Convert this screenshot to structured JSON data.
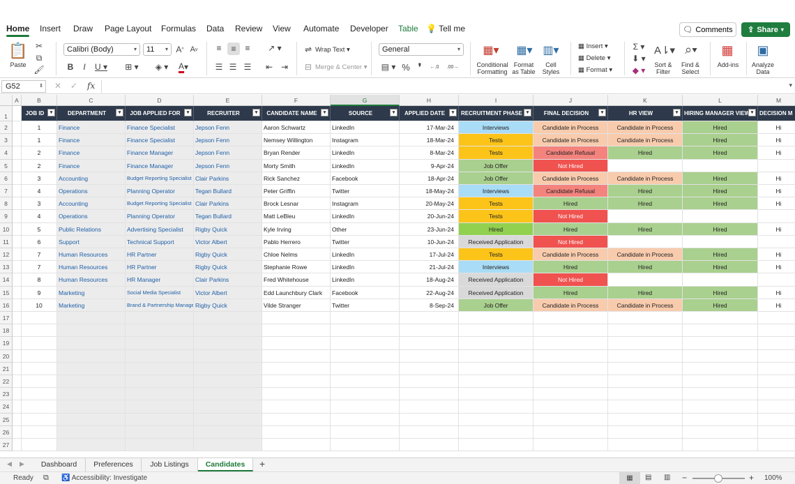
{
  "ribbon_tabs": [
    "Home",
    "Insert",
    "Draw",
    "Page Layout",
    "Formulas",
    "Data",
    "Review",
    "View",
    "Automate",
    "Developer",
    "Table"
  ],
  "tell_me": "Tell me",
  "comments_label": "Comments",
  "share_label": "Share",
  "clipboard": {
    "paste": "Paste"
  },
  "font": {
    "name": "Calibri (Body)",
    "size": "11"
  },
  "alignment": {
    "wrap": "Wrap Text",
    "merge": "Merge & Center"
  },
  "number_format": "General",
  "styles": {
    "conditional": "Conditional\nFormatting",
    "format_table": "Format\nas Table",
    "cell_styles": "Cell\nStyles"
  },
  "cells_group": {
    "insert": "Insert",
    "delete": "Delete",
    "format": "Format"
  },
  "editing": {
    "sort": "Sort &\nFilter",
    "find": "Find &\nSelect"
  },
  "addins": "Add-ins",
  "analyze": "Analyze\nData",
  "formula_bar": {
    "name_box": "G52",
    "fx": "fx",
    "value": ""
  },
  "columns": [
    {
      "letter": "A"
    },
    {
      "letter": "B"
    },
    {
      "letter": "C"
    },
    {
      "letter": "D"
    },
    {
      "letter": "E"
    },
    {
      "letter": "F"
    },
    {
      "letter": "G"
    },
    {
      "letter": "H"
    },
    {
      "letter": "I"
    },
    {
      "letter": "J"
    },
    {
      "letter": "K"
    },
    {
      "letter": "L"
    },
    {
      "letter": "M"
    }
  ],
  "table_headers": [
    "JOB ID",
    "DEPARTMENT",
    "JOB APPLIED FOR",
    "RECRUITER",
    "CANDIDATE NAME",
    "SOURCE",
    "APPLIED DATE",
    "RECRUITMENT PHASE",
    "FINAL DECISION",
    "HR VIEW",
    "HIRING MANAGER VIEW",
    "DECISION M"
  ],
  "rows": [
    [
      "1",
      "Finance",
      "Finance Specialist",
      "Jepson Fenn",
      "Aaron Schwartz",
      "LinkedIn",
      "17-Mar-24",
      "Interviews",
      "Candidate in Process",
      "Candidate in Process",
      "Hired",
      "Hi"
    ],
    [
      "1",
      "Finance",
      "Finance Specialist",
      "Jepson Fenn",
      "Nemsey Willington",
      "Instagram",
      "18-Mar-24",
      "Tests",
      "Candidate in Process",
      "Candidate in Process",
      "Hired",
      "Hi"
    ],
    [
      "2",
      "Finance",
      "Finance Manager",
      "Jepson Fenn",
      "Bryan Render",
      "LinkedIn",
      "8-Mar-24",
      "Tests",
      "Candidate Refusal",
      "Hired",
      "Hired",
      "Hi"
    ],
    [
      "2",
      "Finance",
      "Finance Manager",
      "Jepson Fenn",
      "Morty Smith",
      "LinkedIn",
      "9-Apr-24",
      "Job Offer",
      "Not Hired",
      "",
      "",
      ""
    ],
    [
      "3",
      "Accounting",
      "Budget Reporting Specialist",
      "Clair Parkins",
      "Rick Sanchez",
      "Facebook",
      "18-Apr-24",
      "Job Offer",
      "Candidate in Process",
      "Candidate in Process",
      "Hired",
      "Hi"
    ],
    [
      "4",
      "Operations",
      "Planning Operator",
      "Tegan Bullard",
      "Peter Griffin",
      "Twitter",
      "18-May-24",
      "Interviews",
      "Candidate Refusal",
      "Hired",
      "Hired",
      "Hi"
    ],
    [
      "3",
      "Accounting",
      "Budget Reporting Specialist",
      "Clair Parkins",
      "Brock Lesnar",
      "Instagram",
      "20-May-24",
      "Tests",
      "Hired",
      "Hired",
      "Hired",
      "Hi"
    ],
    [
      "4",
      "Operations",
      "Planning Operator",
      "Tegan Bullard",
      "Matt LeBleu",
      "LinkedIn",
      "20-Jun-24",
      "Tests",
      "Not Hired",
      "",
      "",
      ""
    ],
    [
      "5",
      "Public Relations",
      "Advertising Specialist",
      "Rigby Quick",
      "Kyle Irving",
      "Other",
      "23-Jun-24",
      "Hired",
      "Hired",
      "Hired",
      "Hired",
      "Hi"
    ],
    [
      "6",
      "Support",
      "Technical Support",
      "Victor Albert",
      "Pablo Herrero",
      "Twitter",
      "10-Jun-24",
      "Received Application",
      "Not Hired",
      "",
      "",
      ""
    ],
    [
      "7",
      "Human Resources",
      "HR Partner",
      "Rigby Quick",
      "Chloe Nelms",
      "LinkedIn",
      "17-Jul-24",
      "Tests",
      "Candidate in Process",
      "Candidate in Process",
      "Hired",
      "Hi"
    ],
    [
      "7",
      "Human Resources",
      "HR Partner",
      "Rigby Quick",
      "Stephanie Rowe",
      "LinkedIn",
      "21-Jul-24",
      "Interviews",
      "Hired",
      "Hired",
      "Hired",
      "Hi"
    ],
    [
      "8",
      "Human Resources",
      "HR Manager",
      "Clair Parkins",
      "Fred Whitehouse",
      "LinkedIn",
      "18-Aug-24",
      "Received Application",
      "Not Hired",
      "",
      "",
      ""
    ],
    [
      "9",
      "Marketing",
      "Social Media Specialist",
      "Victor Albert",
      "Edd Launchbury Clark",
      "Facebook",
      "22-Aug-24",
      "Received Application",
      "Hired",
      "Hired",
      "Hired",
      "Hi"
    ],
    [
      "10",
      "Marketing",
      "Brand & Partnership Manager",
      "Rigby Quick",
      "Vilde Stranger",
      "Twitter",
      "8-Sep-24",
      "Job Offer",
      "Candidate in Process",
      "Candidate in Process",
      "Hired",
      "Hi"
    ]
  ],
  "row_numbers": [
    "1",
    "2",
    "3",
    "4",
    "5",
    "6",
    "7",
    "8",
    "9",
    "10",
    "11",
    "12",
    "13",
    "14",
    "15",
    "16",
    "17",
    "18",
    "19",
    "20",
    "21",
    "22",
    "23",
    "24",
    "25",
    "26",
    "27"
  ],
  "status_colors": {
    "Interviews": "#a9dcf6",
    "Tests": "#fcc419",
    "Job Offer": "#a9d08e",
    "Hired": "#92d050",
    "Received Application": "#d9d9d9",
    "Candidate in Process": "#f8cbad",
    "Candidate Refusal": "#f4837d",
    "Not Hired": "#f0524f",
    "HiredDecision": "#a9d08e"
  },
  "sheet_tabs": [
    "Dashboard",
    "Preferences",
    "Job Listings",
    "Candidates"
  ],
  "active_sheet": "Candidates",
  "status": {
    "ready": "Ready",
    "accessibility": "Accessibility: Investigate",
    "zoom": "100%"
  }
}
